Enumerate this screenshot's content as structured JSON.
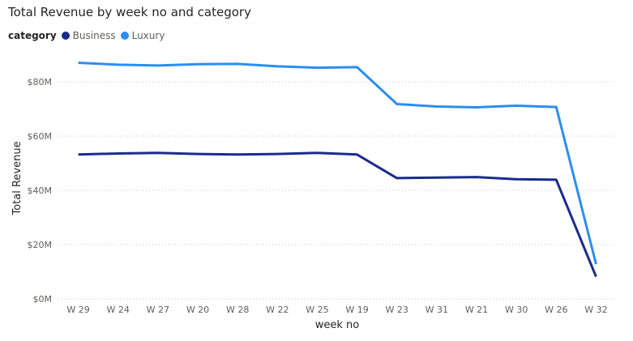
{
  "chart_data": {
    "type": "line",
    "title": "Total Revenue by week no and category",
    "xlabel": "week no",
    "ylabel": "Total Revenue",
    "legend_title": "category",
    "legend_position": "top-left",
    "grid": true,
    "ylim": [
      0,
      80000000
    ],
    "yticks": [
      {
        "value": 0,
        "label": "$0M"
      },
      {
        "value": 20000000,
        "label": "$20M"
      },
      {
        "value": 40000000,
        "label": "$40M"
      },
      {
        "value": 60000000,
        "label": "$60M"
      },
      {
        "value": 80000000,
        "label": "$80M"
      }
    ],
    "categories": [
      "W 29",
      "W 24",
      "W 27",
      "W 20",
      "W 28",
      "W 22",
      "W 25",
      "W 19",
      "W 23",
      "W 31",
      "W 21",
      "W 30",
      "W 26",
      "W 32"
    ],
    "series": [
      {
        "name": "Business",
        "color": "#1a2b8f",
        "values": [
          53200000,
          53600000,
          53800000,
          53400000,
          53200000,
          53400000,
          53800000,
          53200000,
          44500000,
          44700000,
          44900000,
          44100000,
          43900000,
          8200000
        ]
      },
      {
        "name": "Luxury",
        "color": "#2b8ef0",
        "values": [
          87000000,
          86300000,
          86000000,
          86500000,
          86600000,
          85700000,
          85200000,
          85400000,
          71800000,
          70900000,
          70600000,
          71200000,
          70700000,
          12800000
        ]
      }
    ]
  }
}
